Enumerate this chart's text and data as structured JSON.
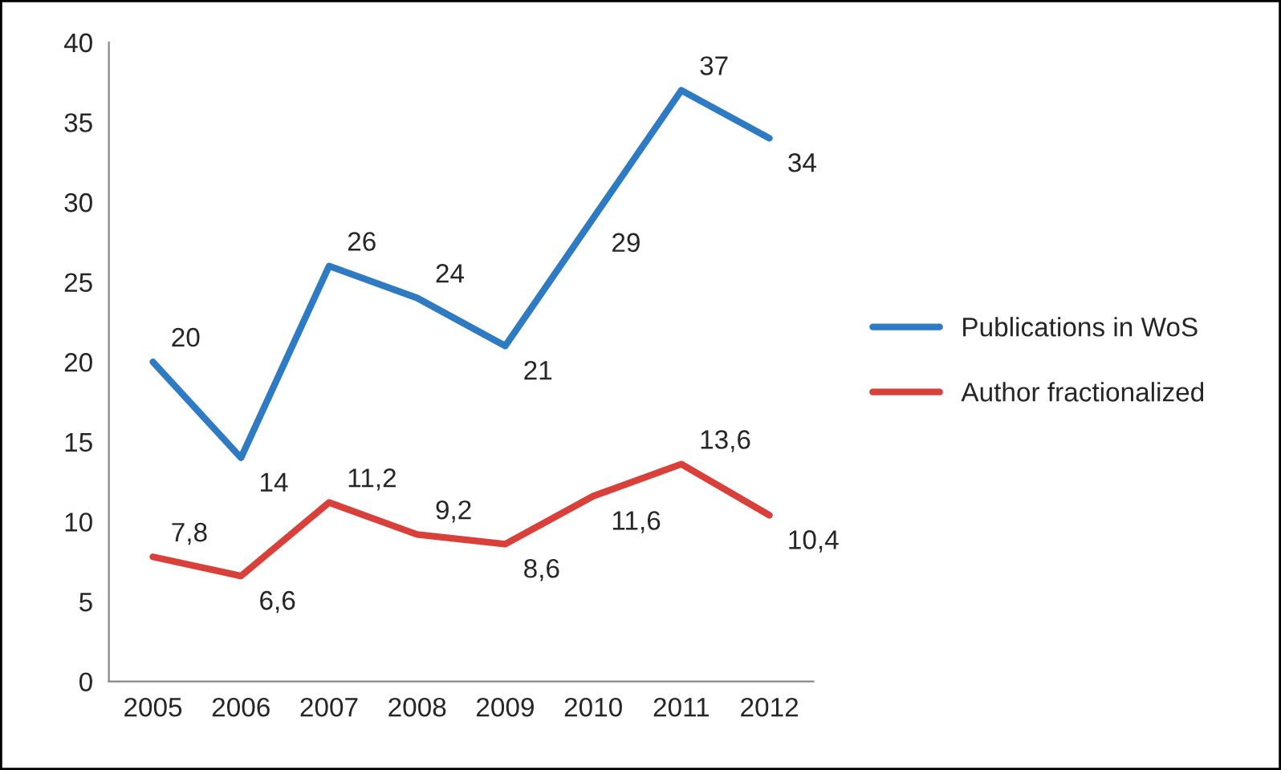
{
  "chart_data": {
    "type": "line",
    "categories": [
      "2005",
      "2006",
      "2007",
      "2008",
      "2009",
      "2010",
      "2011",
      "2012"
    ],
    "series": [
      {
        "name": "Publications in WoS",
        "color": "#2e7bc4",
        "values": [
          20,
          14,
          26,
          24,
          21,
          29,
          37,
          34
        ],
        "value_labels": [
          "20",
          "14",
          "26",
          "24",
          "21",
          "29",
          "37",
          "34"
        ]
      },
      {
        "name": "Author fractionalized",
        "color": "#d9403a",
        "values": [
          7.8,
          6.6,
          11.2,
          9.2,
          8.6,
          11.6,
          13.6,
          10.4
        ],
        "value_labels": [
          "7,8",
          "6,6",
          "11,2",
          "9,2",
          "8,6",
          "11,6",
          "13,6",
          "10,4"
        ]
      }
    ],
    "ylim": [
      0,
      40
    ],
    "yticks": [
      0,
      5,
      10,
      15,
      20,
      25,
      30,
      35,
      40
    ],
    "grid": false,
    "legend": "right",
    "marker": "none",
    "line_style": "solid"
  }
}
